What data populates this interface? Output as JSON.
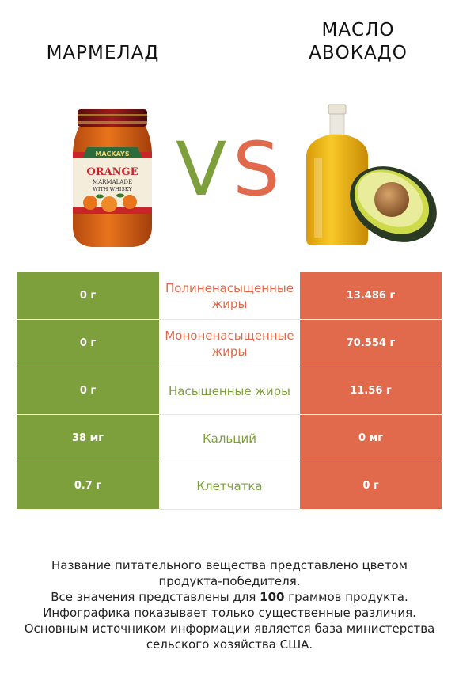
{
  "left_product": {
    "name": "МАРМЕЛАД"
  },
  "right_product": {
    "name_line1": "МАСЛО",
    "name_line2": "АВОКАДО"
  },
  "vs": {
    "v": "V",
    "s": "S"
  },
  "jar_label": {
    "brand": "MACKAYS",
    "line1": "ORANGE",
    "line2": "MARMALADE",
    "line3": "WITH WHISKY"
  },
  "colors": {
    "left": "#7ea03c",
    "right": "#e06a4b"
  },
  "rows": [
    {
      "left": "0 г",
      "nutrient": "Полиненасыщенные жиры",
      "right": "13.486 г",
      "winner": "right"
    },
    {
      "left": "0 г",
      "nutrient": "Мононенасыщенные жиры",
      "right": "70.554 г",
      "winner": "right"
    },
    {
      "left": "0 г",
      "nutrient": "Насыщенные жиры",
      "right": "11.56 г",
      "winner": "left"
    },
    {
      "left": "38 мг",
      "nutrient": "Кальций",
      "right": "0 мг",
      "winner": "left"
    },
    {
      "left": "0.7 г",
      "nutrient": "Клетчатка",
      "right": "0 г",
      "winner": "left"
    }
  ],
  "footer": {
    "line1": "Название питательного вещества представлено цветом",
    "line2": "продукта-победителя.",
    "line3_pre": "Все значения представлены для ",
    "line3_num": "100",
    "line3_post": " граммов продукта.",
    "line4": "Инфографика показывает только существенные различия.",
    "line5": "Основным источником информации является база министерства",
    "line6": "сельского хозяйства США."
  }
}
